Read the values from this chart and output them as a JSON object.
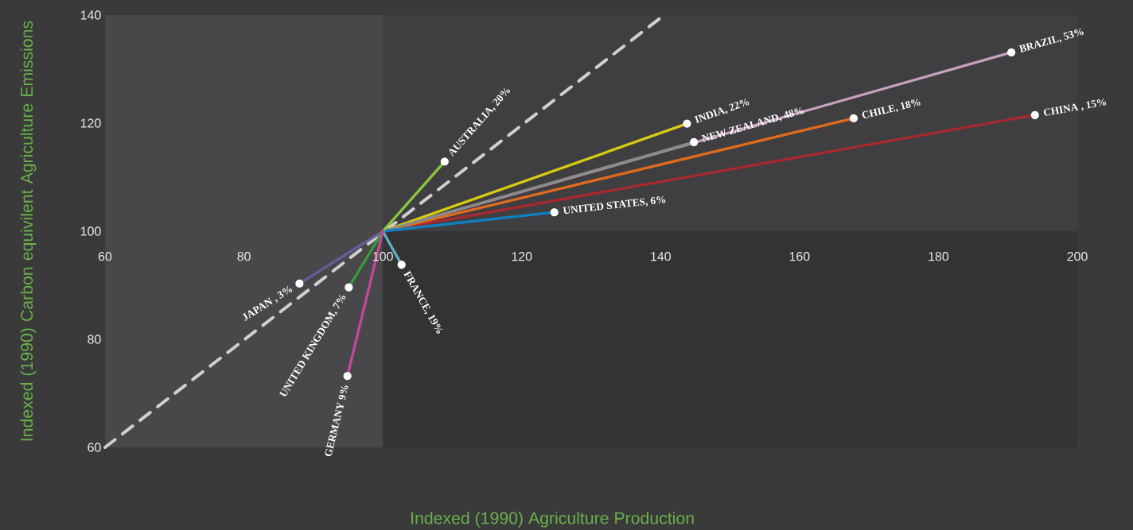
{
  "chart_data": {
    "type": "line",
    "xlabel": "Indexed (1990) Agriculture Production",
    "ylabel": "Indexed (1990) Carbon equivilent Agriculture Emissions",
    "xlim": [
      60,
      200
    ],
    "ylim": [
      60,
      140
    ],
    "xticks": [
      60,
      80,
      100,
      120,
      140,
      160,
      180,
      200
    ],
    "yticks": [
      60,
      80,
      100,
      120,
      140
    ],
    "grid": false,
    "legend": false,
    "marker": "circle",
    "bands": [
      {
        "axis": "y",
        "from": 100,
        "to": 140,
        "color": "#3f3f41"
      },
      {
        "axis": "x",
        "from": 60,
        "to": 100,
        "color": "#48484a"
      }
    ],
    "series": [
      {
        "x": [
          60,
          140.5
        ],
        "values": [
          60,
          140
        ],
        "color": "#cfcfcf",
        "line_style": "dashed",
        "marker": "none"
      },
      {
        "name": "BRAZIL, 53%",
        "x": [
          100,
          190.5
        ],
        "values": [
          100,
          133.1
        ],
        "color": "#c8a0c0"
      },
      {
        "name": "CHINA , 15%",
        "x": [
          100,
          193.9
        ],
        "values": [
          100,
          121.5
        ],
        "color": "#a8282f"
      },
      {
        "name": "CHILE, 18%",
        "x": [
          100,
          167.8
        ],
        "values": [
          100,
          120.9
        ],
        "color": "#e06a1e"
      },
      {
        "name": "INDIA, 22%",
        "x": [
          100,
          143.8
        ],
        "values": [
          100,
          119.9
        ],
        "color": "#d8cc10"
      },
      {
        "name": "NEW ZEALAND, 48%",
        "x": [
          100,
          144.8
        ],
        "values": [
          100,
          116.5
        ],
        "color": "#8a8a8a"
      },
      {
        "name": "UNITED STATES, 6%",
        "x": [
          100,
          124.7
        ],
        "values": [
          100,
          103.5
        ],
        "color": "#1080c0"
      },
      {
        "name": "AUSTRALIA, 20%",
        "x": [
          100,
          108.9
        ],
        "values": [
          100,
          112.9
        ],
        "color": "#8cc63f"
      },
      {
        "name": "FRANCE, 19%",
        "x": [
          100,
          102.7
        ],
        "values": [
          100,
          93.8
        ],
        "color": "#5ab0c0"
      },
      {
        "name": "JAPAN , 3%",
        "x": [
          100,
          88.0
        ],
        "values": [
          100,
          90.3
        ],
        "color": "#6a5a9a"
      },
      {
        "name": "UNITED KINGDOM, 7%",
        "x": [
          100,
          95.1
        ],
        "values": [
          100,
          89.6
        ],
        "color": "#3a9a3a"
      },
      {
        "name": "GERMANY  9%",
        "x": [
          100,
          94.9
        ],
        "values": [
          100,
          73.2
        ],
        "color": "#c04a9a"
      }
    ]
  }
}
